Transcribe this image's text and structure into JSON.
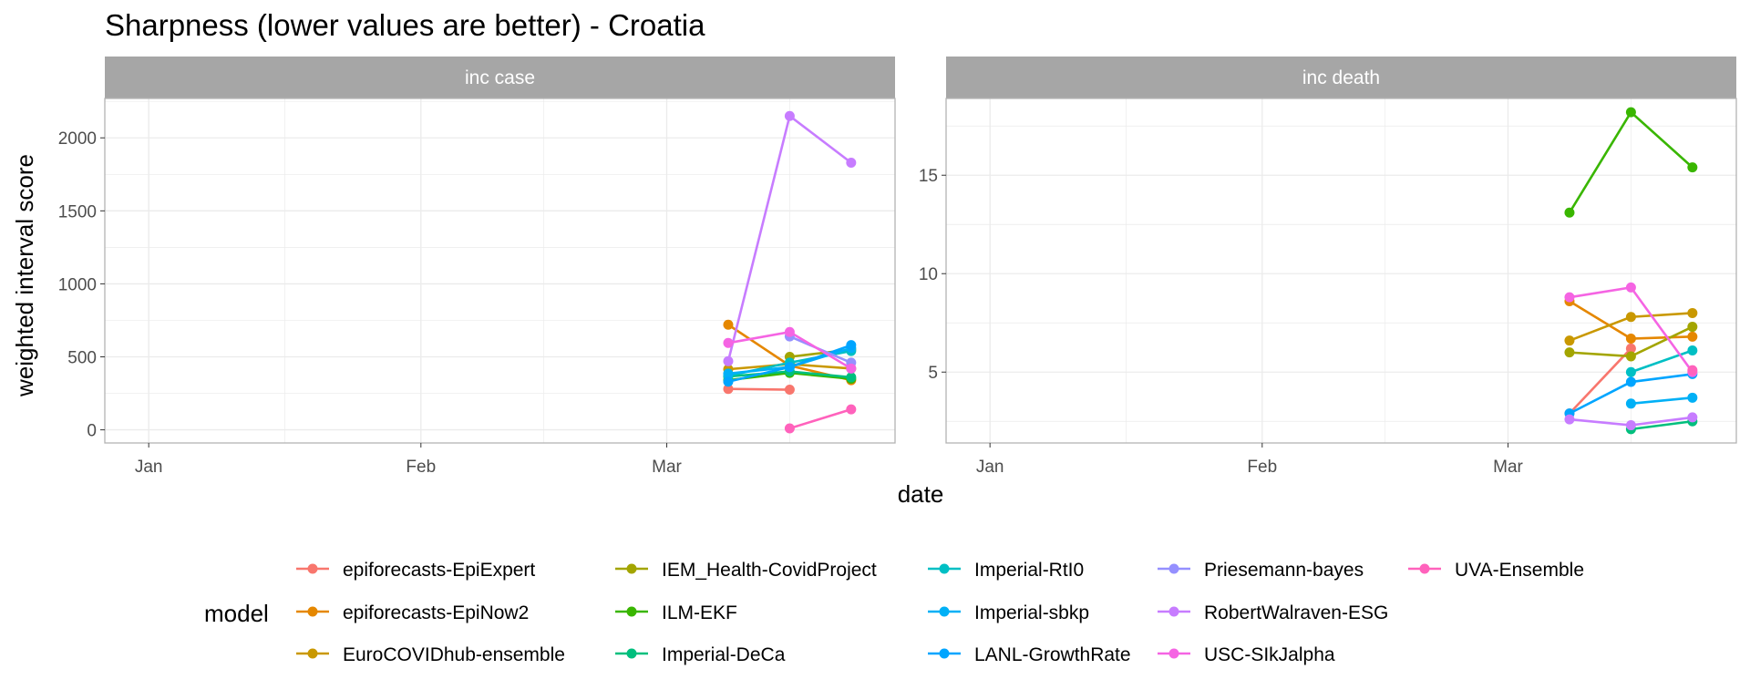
{
  "chart_data": {
    "type": "line",
    "title": "Sharpness (lower values are better) - Croatia",
    "xlabel": "date",
    "ylabel": "weighted interval score",
    "legend_title": "model",
    "legend_position": "bottom",
    "grid": true,
    "x_tick_labels": [
      "Jan",
      "Feb",
      "Mar"
    ],
    "x_tick_dates": [
      "2021-01-01",
      "2021-02-01",
      "2021-03-01"
    ],
    "xlim": [
      "2020-12-27",
      "2021-03-27"
    ],
    "dates": [
      "2021-03-08",
      "2021-03-15",
      "2021-03-22"
    ],
    "series": [
      {
        "name": "epiforecasts-EpiExpert",
        "color": "#F8766D"
      },
      {
        "name": "epiforecasts-EpiNow2",
        "color": "#E58700"
      },
      {
        "name": "EuroCOVIDhub-ensemble",
        "color": "#C99800"
      },
      {
        "name": "IEM_Health-CovidProject",
        "color": "#A3A500"
      },
      {
        "name": "ILM-EKF",
        "color": "#39B600"
      },
      {
        "name": "Imperial-DeCa",
        "color": "#00BF7D"
      },
      {
        "name": "Imperial-RtI0",
        "color": "#00BFC4"
      },
      {
        "name": "Imperial-sbkp",
        "color": "#00B0F6"
      },
      {
        "name": "LANL-GrowthRate",
        "color": "#00A5FF"
      },
      {
        "name": "Priesemann-bayes",
        "color": "#9590FF"
      },
      {
        "name": "RobertWalraven-ESG",
        "color": "#C77CFF"
      },
      {
        "name": "USC-SIkJalpha",
        "color": "#F564E3"
      },
      {
        "name": "UVA-Ensemble",
        "color": "#FF62BC"
      }
    ],
    "panels": [
      {
        "label": "inc case",
        "ylim": [
          -90,
          2270
        ],
        "y_ticks": [
          0,
          500,
          1000,
          1500,
          2000
        ],
        "values": {
          "epiforecasts-EpiExpert": [
            280,
            275,
            null
          ],
          "epiforecasts-EpiNow2": [
            720,
            440,
            340
          ],
          "EuroCOVIDhub-ensemble": [
            415,
            450,
            420
          ],
          "IEM_Health-CovidProject": [
            null,
            500,
            550
          ],
          "ILM-EKF": [
            340,
            390,
            350
          ],
          "Imperial-DeCa": [
            365,
            400,
            360
          ],
          "Imperial-RtI0": [
            370,
            460,
            540
          ],
          "Imperial-sbkp": [
            385,
            430,
            560
          ],
          "LANL-GrowthRate": [
            330,
            430,
            580
          ],
          "Priesemann-bayes": [
            null,
            640,
            460
          ],
          "RobertWalraven-ESG": [
            470,
            2150,
            1830
          ],
          "USC-SIkJalpha": [
            595,
            670,
            420
          ],
          "UVA-Ensemble": [
            null,
            10,
            140
          ]
        }
      },
      {
        "label": "inc death",
        "ylim": [
          1.4,
          18.9
        ],
        "y_ticks": [
          5,
          10,
          15
        ],
        "values": {
          "epiforecasts-EpiExpert": [
            2.9,
            6.2,
            null
          ],
          "epiforecasts-EpiNow2": [
            8.6,
            6.7,
            6.8
          ],
          "EuroCOVIDhub-ensemble": [
            6.6,
            7.8,
            8.0
          ],
          "IEM_Health-CovidProject": [
            6.0,
            5.8,
            7.3
          ],
          "ILM-EKF": [
            13.1,
            18.2,
            15.4
          ],
          "Imperial-DeCa": [
            null,
            2.1,
            2.5
          ],
          "Imperial-RtI0": [
            null,
            5.0,
            6.1
          ],
          "Imperial-sbkp": [
            null,
            3.4,
            3.7
          ],
          "LANL-GrowthRate": [
            2.9,
            4.5,
            4.9
          ],
          "Priesemann-bayes": [
            null,
            null,
            null
          ],
          "RobertWalraven-ESG": [
            2.6,
            2.3,
            2.7
          ],
          "USC-SIkJalpha": [
            8.8,
            9.3,
            5.0
          ],
          "UVA-Ensemble": [
            null,
            null,
            5.1
          ]
        }
      }
    ]
  }
}
